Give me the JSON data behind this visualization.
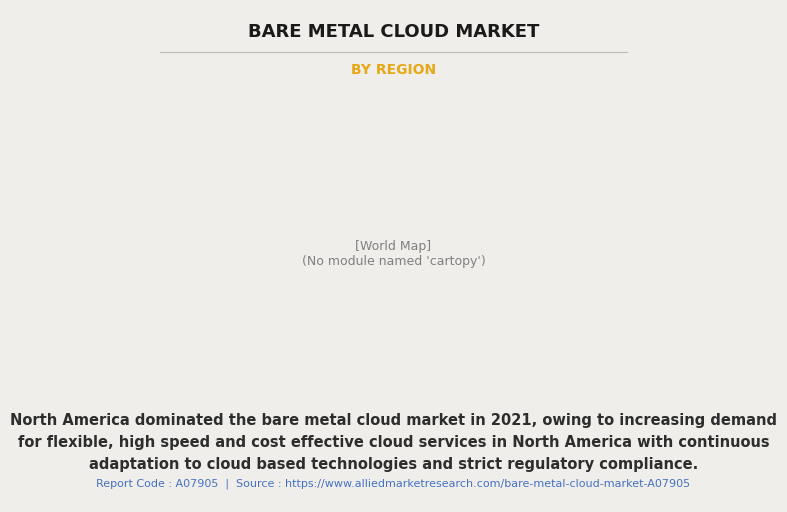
{
  "title": "BARE METAL CLOUD MARKET",
  "subtitle": "BY REGION",
  "title_color": "#1a1a1a",
  "subtitle_color": "#e6a817",
  "background_color": "#f0eeea",
  "map_highlight_color": "#8db87a",
  "map_shadow_color": "#9e9e8a",
  "north_america_color": "#e8e8f0",
  "map_edge_color": "#7ab8e8",
  "description_text": "North America dominated the bare metal cloud market in 2021, owing to increasing demand\nfor flexible, high speed and cost effective cloud services in North America with continuous\nadaptation to cloud based technologies and strict regulatory compliance.",
  "description_color": "#2d2d2d",
  "footer_text": "Report Code : A07905  |  Source : https://www.alliedmarketresearch.com/bare-metal-cloud-market-A07905",
  "footer_color": "#4472c4",
  "title_fontsize": 13,
  "subtitle_fontsize": 10,
  "desc_fontsize": 10.5,
  "footer_fontsize": 8
}
